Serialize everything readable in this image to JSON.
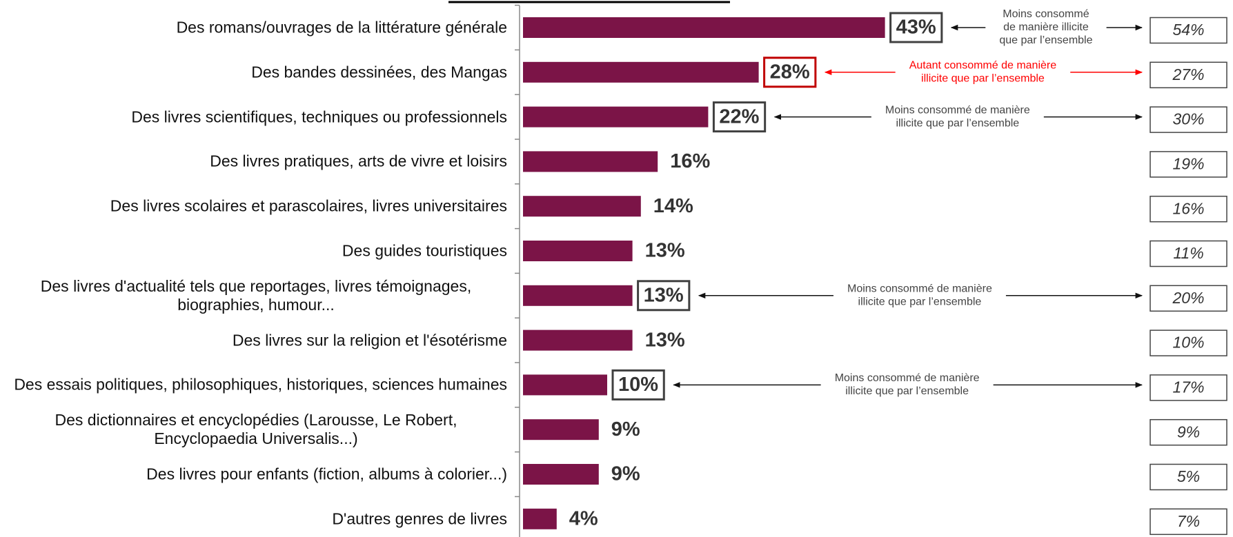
{
  "chart_data": {
    "type": "bar",
    "orientation": "horizontal",
    "categories": [
      "Des romans/ouvrages de la littérature générale",
      "Des bandes dessinées, des Mangas",
      "Des livres scientifiques, techniques ou professionnels",
      "Des livres pratiques, arts de vivre et loisirs",
      "Des livres scolaires et parascolaires, livres universitaires",
      "Des guides touristiques",
      "Des livres d'actualité tels que reportages, livres témoignages, biographies, humour...",
      "Des livres sur la religion et l'ésotérisme",
      "Des essais politiques, philosophiques, historiques, sciences humaines",
      "Des dictionnaires et encyclopédies (Larousse, Le Robert, Encyclopaedia Universalis...)",
      "Des livres pour enfants (fiction, albums à colorier...)",
      "D'autres genres de livres"
    ],
    "values": [
      43,
      28,
      22,
      16,
      14,
      13,
      13,
      13,
      10,
      9,
      9,
      4
    ],
    "value_labels": [
      "43%",
      "28%",
      "22%",
      "16%",
      "14%",
      "13%",
      "13%",
      "13%",
      "10%",
      "9%",
      "9%",
      "4%"
    ],
    "color": "#7b1447",
    "xlim": [
      0,
      80
    ],
    "box_colors": [
      "#404040",
      "#c00000",
      "#404040",
      null,
      null,
      null,
      "#404040",
      null,
      "#404040",
      null,
      null,
      null
    ],
    "notes": [
      [
        "Moins consommé",
        "de manière illicite",
        "que par l’ensemble"
      ],
      [
        "Autant consommé de manière",
        "illicite que par l’ensemble"
      ],
      [
        "Moins consommé de manière",
        "illicite que par l’ensemble"
      ],
      null,
      null,
      null,
      [
        "Moins consommé de manière",
        "illicite que par l’ensemble"
      ],
      null,
      [
        "Moins consommé de manière",
        "illicite que par l’ensemble"
      ],
      null,
      null,
      null
    ],
    "note_colors": [
      "#444444",
      "#ff0000",
      "#444444",
      null,
      null,
      null,
      "#444444",
      null,
      "#444444",
      null,
      null,
      null
    ],
    "comparison_values": [
      54,
      27,
      30,
      19,
      16,
      11,
      20,
      10,
      17,
      9,
      5,
      7
    ],
    "comparison_labels": [
      "54%",
      "27%",
      "30%",
      "19%",
      "16%",
      "11%",
      "20%",
      "10%",
      "17%",
      "9%",
      "5%",
      "7%"
    ]
  }
}
